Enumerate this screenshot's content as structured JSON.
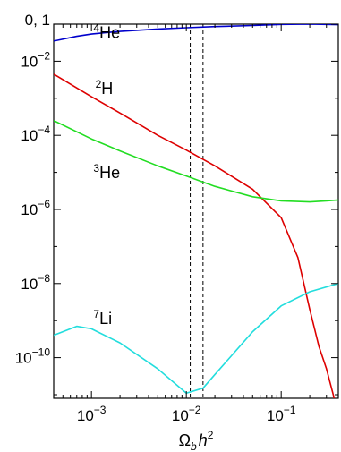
{
  "chart_data": {
    "type": "line",
    "title": "",
    "xlabel": "Ω_b h^2",
    "ylabel": "",
    "x_scale": "log",
    "y_scale": "log",
    "xlim": [
      0.0004,
      0.4
    ],
    "ylim": [
      8e-12,
      0.1
    ],
    "grid": false,
    "legend": "none",
    "x_ticks": [
      {
        "value": 0.001,
        "base": "10",
        "exp": "−3"
      },
      {
        "value": 0.01,
        "base": "10",
        "exp": "−2"
      },
      {
        "value": 0.1,
        "base": "10",
        "exp": "−1"
      }
    ],
    "y_ticks": [
      {
        "value": 0.1,
        "label": "0, 1",
        "base": "",
        "exp": ""
      },
      {
        "value": 0.01,
        "label": "",
        "base": "10",
        "exp": "−2"
      },
      {
        "value": 0.0001,
        "label": "",
        "base": "10",
        "exp": "−4"
      },
      {
        "value": 1e-06,
        "label": "",
        "base": "10",
        "exp": "−6"
      },
      {
        "value": 1e-08,
        "label": "",
        "base": "10",
        "exp": "−8"
      },
      {
        "value": 1e-10,
        "label": "",
        "base": "10",
        "exp": "−10"
      }
    ],
    "vertical_lines": [
      0.011,
      0.015
    ],
    "series": [
      {
        "label_sup": "4",
        "label_main": "He",
        "label_x": 0.00105,
        "label_y": 0.042,
        "color": "#0000cc",
        "x": [
          0.0004,
          0.0007,
          0.001,
          0.002,
          0.005,
          0.01,
          0.02,
          0.05,
          0.1,
          0.2,
          0.4
        ],
        "y": [
          0.035,
          0.047,
          0.054,
          0.064,
          0.074,
          0.08,
          0.086,
          0.092,
          0.098,
          0.1,
          0.097
        ]
      },
      {
        "label_sup": "2",
        "label_main": "H",
        "label_x": 0.0011,
        "label_y": 0.0013,
        "color": "#dd0000",
        "x": [
          0.0004,
          0.001,
          0.002,
          0.005,
          0.01,
          0.02,
          0.05,
          0.1,
          0.15,
          0.2,
          0.25,
          0.3,
          0.4
        ],
        "y": [
          0.0045,
          0.0011,
          0.0004,
          0.0001,
          4e-05,
          1.5e-05,
          3.5e-06,
          6e-07,
          5e-08,
          2e-09,
          2e-10,
          5e-11,
          3e-12
        ]
      },
      {
        "label_sup": "3",
        "label_main": "He",
        "label_x": 0.00105,
        "label_y": 7e-06,
        "color": "#22dd22",
        "x": [
          0.0004,
          0.001,
          0.002,
          0.005,
          0.01,
          0.02,
          0.05,
          0.1,
          0.2,
          0.3,
          0.4
        ],
        "y": [
          0.00025,
          8e-05,
          3.8e-05,
          1.5e-05,
          8e-06,
          4.2e-06,
          2.2e-06,
          1.7e-06,
          1.6e-06,
          1.7e-06,
          1.8e-06
        ]
      },
      {
        "label_sup": "7",
        "label_main": "Li",
        "label_x": 0.00105,
        "label_y": 8e-10,
        "color": "#22dddd",
        "x": [
          0.0004,
          0.0007,
          0.001,
          0.002,
          0.005,
          0.01,
          0.015,
          0.02,
          0.05,
          0.1,
          0.2,
          0.4
        ],
        "y": [
          4e-10,
          7e-10,
          6e-10,
          2.5e-10,
          5e-11,
          1.1e-11,
          1.5e-11,
          3.5e-11,
          5e-10,
          2.5e-09,
          6e-09,
          1e-08
        ]
      }
    ]
  }
}
